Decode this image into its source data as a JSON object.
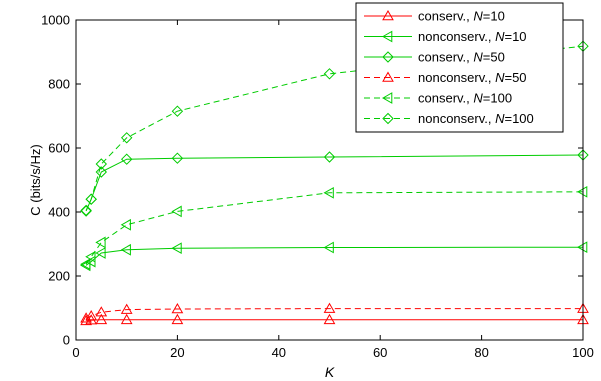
{
  "chart_data": {
    "type": "line",
    "xlabel": "K",
    "ylabel": "C (bits/s/Hz)",
    "xlim": [
      0,
      100
    ],
    "ylim": [
      0,
      1000
    ],
    "xticks": [
      0,
      20,
      40,
      60,
      80,
      100
    ],
    "yticks": [
      0,
      200,
      400,
      600,
      800,
      1000
    ],
    "grid": false,
    "legend_position": "top-right",
    "series": [
      {
        "name": "conserv., N=10",
        "legend_prefix": "conserv., ",
        "legend_var": "N",
        "legend_suffix": "=10",
        "color": "#ff0000",
        "dash": "solid",
        "marker": "triangle-up",
        "x": [
          2,
          3,
          5,
          10,
          20,
          50,
          100
        ],
        "y": [
          60,
          62,
          63,
          63,
          63,
          63,
          63
        ]
      },
      {
        "name": "nonconserv., N=10",
        "legend_prefix": "nonconserv., ",
        "legend_var": "N",
        "legend_suffix": "=10",
        "color": "#00cc00",
        "dash": "solid",
        "marker": "triangle-left",
        "x": [
          2,
          3,
          5,
          10,
          20,
          50,
          100
        ],
        "y": [
          233,
          245,
          272,
          282,
          287,
          289,
          290
        ]
      },
      {
        "name": "conserv., N=50",
        "legend_prefix": "conserv., ",
        "legend_var": "N",
        "legend_suffix": "=50",
        "color": "#00cc00",
        "dash": "solid",
        "marker": "diamond",
        "x": [
          2,
          3,
          5,
          10,
          20,
          50,
          100
        ],
        "y": [
          403,
          440,
          525,
          565,
          568,
          572,
          578
        ]
      },
      {
        "name": "nonconserv., N=50",
        "legend_prefix": "nonconserv., ",
        "legend_var": "N",
        "legend_suffix": "=50",
        "color": "#ff0000",
        "dash": "dashed",
        "marker": "triangle-up",
        "x": [
          2,
          3,
          5,
          10,
          20,
          50,
          100
        ],
        "y": [
          68,
          75,
          87,
          95,
          97,
          98,
          98
        ]
      },
      {
        "name": "conserv., N=100",
        "legend_prefix": "conserv., ",
        "legend_var": "N",
        "legend_suffix": "=100",
        "color": "#00cc00",
        "dash": "dashed",
        "marker": "triangle-left",
        "x": [
          2,
          3,
          5,
          10,
          20,
          50,
          100
        ],
        "y": [
          237,
          260,
          305,
          360,
          402,
          460,
          463
        ]
      },
      {
        "name": "nonconserv., N=100",
        "legend_prefix": "nonconserv., ",
        "legend_var": "N",
        "legend_suffix": "=100",
        "color": "#00cc00",
        "dash": "dashed",
        "marker": "diamond",
        "x": [
          2,
          3,
          5,
          10,
          20,
          50,
          100
        ],
        "y": [
          405,
          440,
          550,
          632,
          715,
          832,
          918
        ]
      }
    ]
  }
}
